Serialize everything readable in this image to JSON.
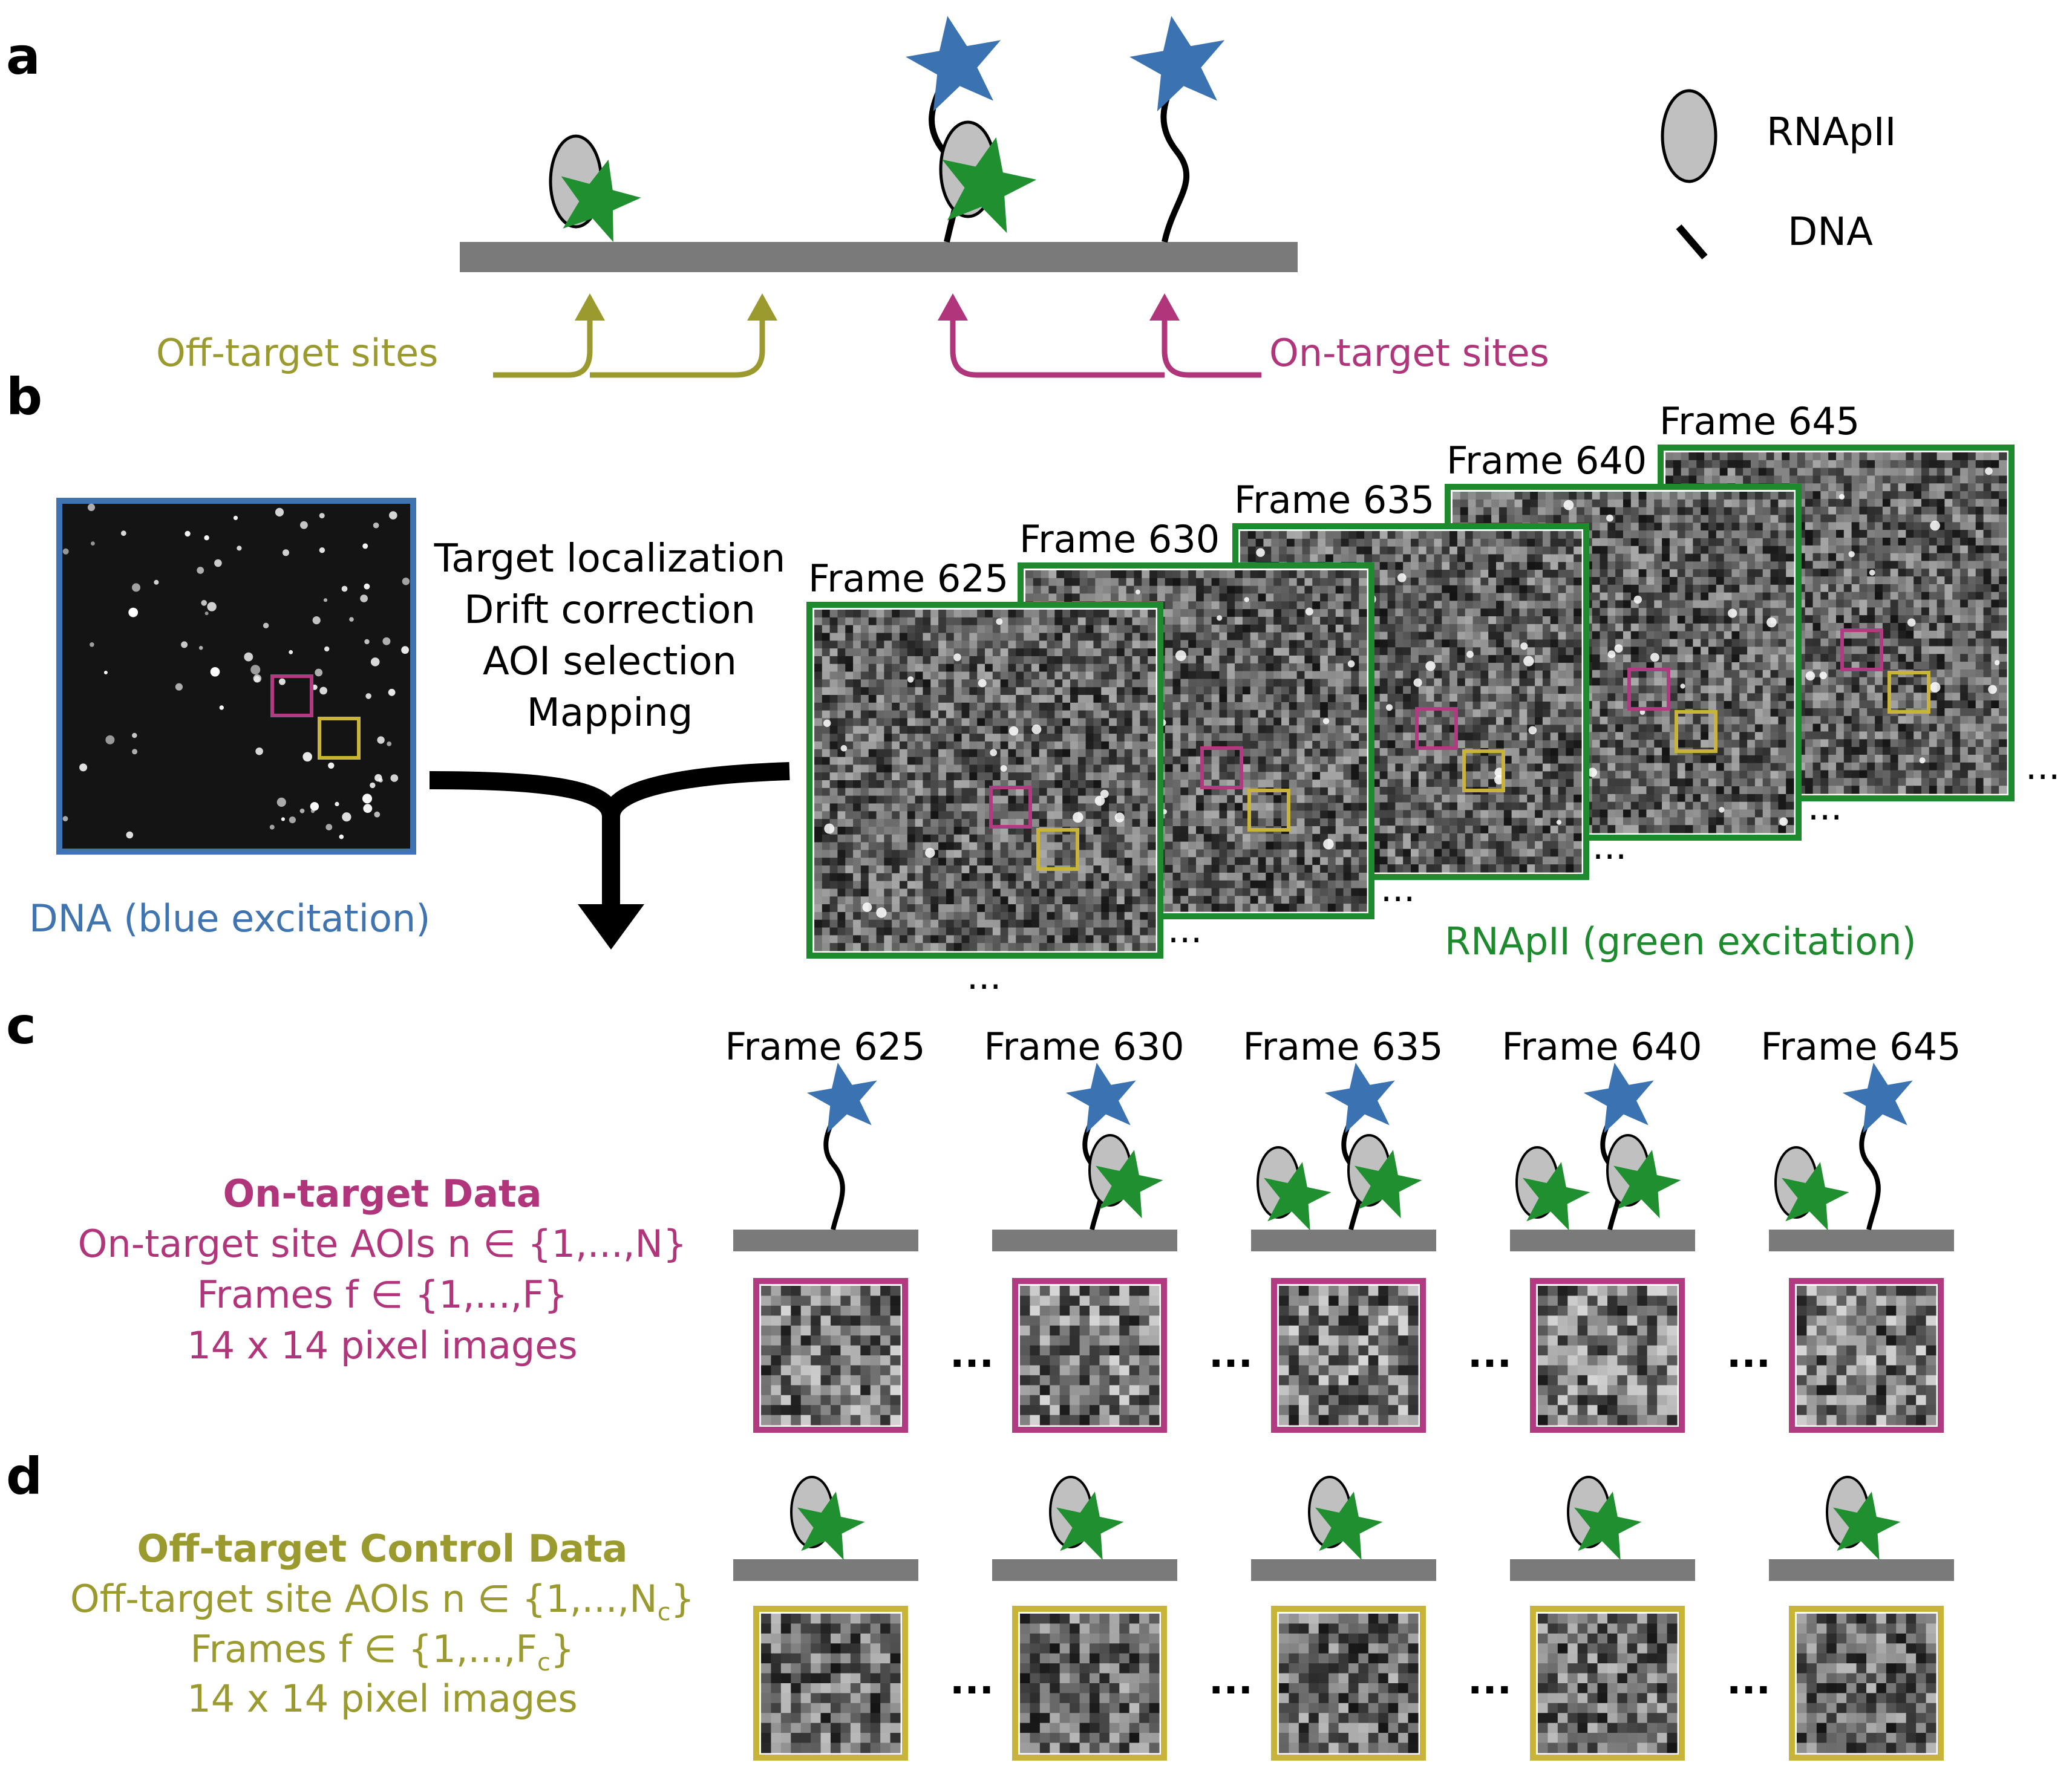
{
  "panel_a": {
    "letter": "a",
    "off_target_label": "Off-target sites",
    "on_target_label": "On-target sites",
    "legend": {
      "rnapii_label": "RNApII",
      "dna_label": "DNA"
    }
  },
  "panel_b": {
    "letter": "b",
    "steps": [
      "Target localization",
      "Drift correction",
      "AOI selection",
      "Mapping"
    ],
    "dna_caption": "DNA (blue excitation)",
    "rnapii_caption": "RNApII (green excitation)",
    "frames": [
      "Frame 625",
      "Frame 630",
      "Frame 635",
      "Frame 640",
      "Frame 645"
    ],
    "ellipsis": "..."
  },
  "panel_c": {
    "letter": "c",
    "frames": [
      "Frame 625",
      "Frame 630",
      "Frame 635",
      "Frame 640",
      "Frame 645"
    ],
    "title": "On-target Data",
    "aoi_line_main": "On-target site AOIs n ∈  {1,...,N}",
    "frames_line_main": "Frames f ∈  {1,...,F}",
    "pixels_line": "14 x 14 pixel images",
    "ellipsis": "..."
  },
  "panel_d": {
    "letter": "d",
    "title": "Off-target Control Data",
    "aoi_line_main": "Off-target site AOIs n ∈  {1,...,N",
    "aoi_line_sub": "c",
    "aoi_line_end": "}",
    "frames_line_main": "Frames f ∈  {1,...,F",
    "frames_line_sub": "c",
    "frames_line_end": "}",
    "pixels_line": "14 x 14 pixel images",
    "ellipsis": "..."
  },
  "colors": {
    "off_target": "#9a9a2e",
    "on_target": "#b0357a",
    "dna_blue": "#3f74b0",
    "green_frame": "#1d8a2e",
    "star_green": "#1f8f2f",
    "star_blue": "#3b73b2",
    "aoi_magenta": "#b13b80",
    "aoi_yellow": "#c9b43a",
    "bar_gray": "#7a7a7a",
    "rnapii_fill": "#c0c0c0"
  }
}
